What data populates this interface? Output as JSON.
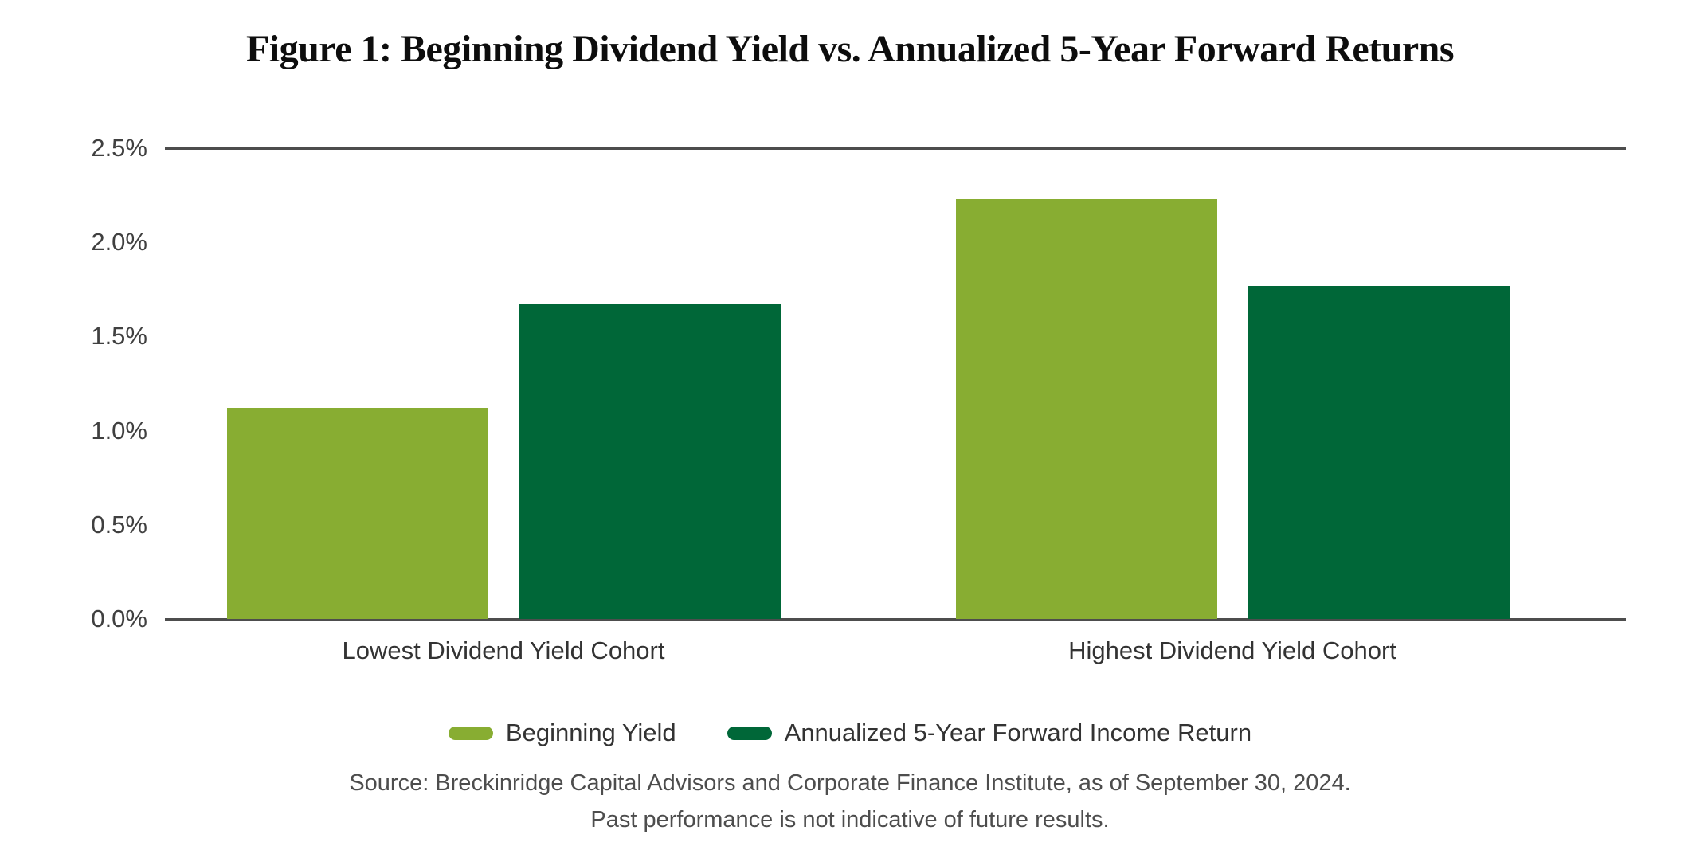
{
  "figure": {
    "title": "Figure 1: Beginning Dividend Yield vs. Annualized 5-Year Forward Returns",
    "source_line1": "Source: Breckinridge Capital Advisors and Corporate Finance Institute, as of September 30, 2024.",
    "source_line2": "Past performance is not indicative of future results."
  },
  "colors": {
    "beginning_yield_green": "#88ad32",
    "forward_return_green": "#006738",
    "axis_line_gray": "#4d4d4d",
    "text_gray": "#404040"
  },
  "chart_data": {
    "type": "bar",
    "title": "Figure 1: Beginning Dividend Yield vs. Annualized 5-Year Forward Returns",
    "categories": [
      "Lowest Dividend Yield Cohort",
      "Highest Dividend Yield Cohort"
    ],
    "series": [
      {
        "name": "Beginning Yield",
        "color": "#88ad32",
        "values": [
          1.12,
          2.23
        ]
      },
      {
        "name": "Annualized 5-Year Forward Income Return",
        "color": "#006738",
        "values": [
          1.67,
          1.77
        ]
      }
    ],
    "xlabel": "",
    "ylabel": "",
    "ylim": [
      0,
      2.5
    ],
    "y_ticks": [
      "0.0%",
      "0.5%",
      "1.0%",
      "1.5%",
      "2.0%",
      "2.5%"
    ],
    "gridlines_at": [
      0,
      2.5
    ],
    "grid": "top-and-baseline-only",
    "legend_position": "bottom",
    "value_format": "percent"
  }
}
